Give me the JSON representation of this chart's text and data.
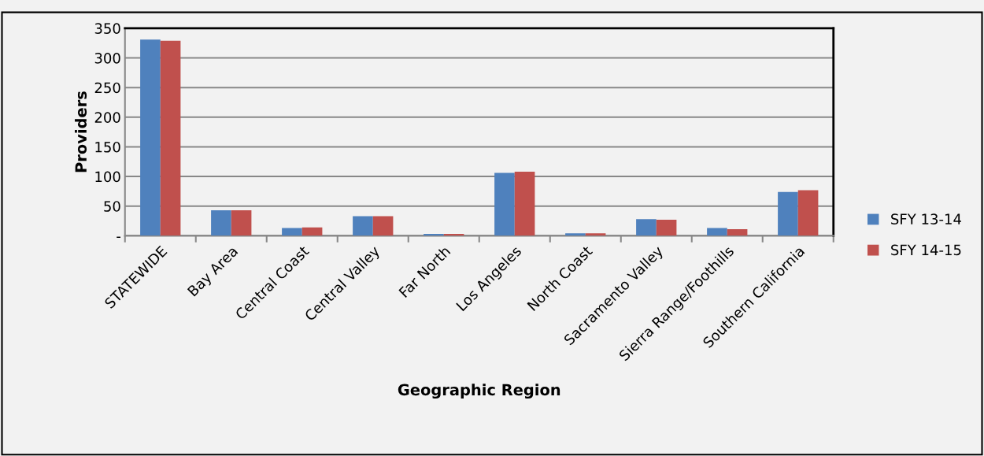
{
  "chart_data": {
    "type": "bar",
    "xlabel": "Geographic Region",
    "ylabel": "Providers",
    "categories": [
      "STATEWIDE",
      "Bay Area",
      "Central Coast",
      "Central Valley",
      "Far North",
      "Los Angeles",
      "North Coast",
      "Sacramento Valley",
      "Sierra Range/Foothills",
      "Southern California"
    ],
    "series": [
      {
        "name": "SFY 13-14",
        "color": "#4f81bd",
        "values": [
          331,
          43,
          13,
          33,
          3,
          106,
          4,
          28,
          13,
          74
        ]
      },
      {
        "name": "SFY 14-15",
        "color": "#c0504d",
        "values": [
          329,
          43,
          14,
          33,
          3,
          108,
          4,
          27,
          11,
          77
        ]
      }
    ],
    "ylim": [
      0,
      350
    ],
    "yticks": [
      {
        "value": 0,
        "label": "-"
      },
      50,
      100,
      150,
      200,
      250,
      300,
      350
    ],
    "grid": "y",
    "legend": "right"
  }
}
